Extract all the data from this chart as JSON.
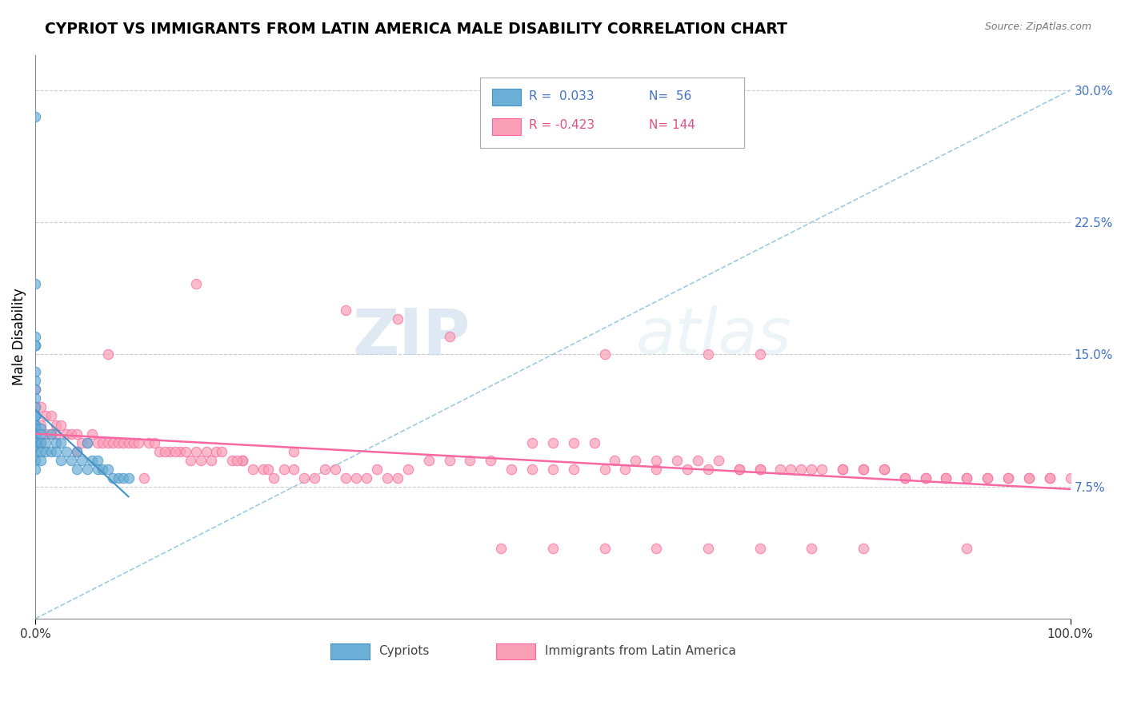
{
  "title": "CYPRIOT VS IMMIGRANTS FROM LATIN AMERICA MALE DISABILITY CORRELATION CHART",
  "source": "Source: ZipAtlas.com",
  "ylabel": "Male Disability",
  "xlim": [
    0.0,
    1.0
  ],
  "ylim": [
    0.0,
    0.32
  ],
  "cypriot_color": "#6baed6",
  "cypriot_edge": "#4292c6",
  "immigrant_color": "#fa9fb5",
  "immigrant_edge": "#f768a1",
  "trendline_cypriot": "#4292c6",
  "trendline_immigrant": "#f768a1",
  "diagonal_color": "#9ecae1",
  "watermark_zip": "ZIP",
  "watermark_atlas": "atlas",
  "cypriot_points_x": [
    0.0,
    0.0,
    0.0,
    0.0,
    0.0,
    0.0,
    0.0,
    0.0,
    0.0,
    0.0,
    0.0,
    0.0,
    0.0,
    0.0,
    0.0,
    0.0,
    0.0,
    0.0,
    0.0,
    0.0,
    0.0,
    0.0,
    0.0,
    0.0,
    0.0,
    0.0,
    0.0,
    0.005,
    0.005,
    0.005,
    0.005,
    0.005,
    0.01,
    0.01,
    0.015,
    0.015,
    0.02,
    0.02,
    0.025,
    0.025,
    0.03,
    0.035,
    0.04,
    0.04,
    0.045,
    0.05,
    0.05,
    0.055,
    0.06,
    0.06,
    0.065,
    0.07,
    0.075,
    0.08,
    0.085,
    0.09
  ],
  "cypriot_points_y": [
    0.285,
    0.19,
    0.16,
    0.155,
    0.155,
    0.14,
    0.135,
    0.13,
    0.125,
    0.12,
    0.115,
    0.115,
    0.115,
    0.115,
    0.11,
    0.11,
    0.108,
    0.105,
    0.105,
    0.103,
    0.1,
    0.1,
    0.1,
    0.098,
    0.095,
    0.09,
    0.085,
    0.108,
    0.105,
    0.1,
    0.095,
    0.09,
    0.1,
    0.095,
    0.105,
    0.095,
    0.1,
    0.095,
    0.1,
    0.09,
    0.095,
    0.09,
    0.095,
    0.085,
    0.09,
    0.1,
    0.085,
    0.09,
    0.09,
    0.085,
    0.085,
    0.085,
    0.08,
    0.08,
    0.08,
    0.08
  ],
  "immigrant_points_x": [
    0.0,
    0.0,
    0.0,
    0.005,
    0.005,
    0.005,
    0.01,
    0.01,
    0.015,
    0.015,
    0.02,
    0.02,
    0.025,
    0.03,
    0.035,
    0.04,
    0.04,
    0.045,
    0.05,
    0.055,
    0.06,
    0.065,
    0.07,
    0.07,
    0.075,
    0.08,
    0.085,
    0.09,
    0.095,
    0.1,
    0.11,
    0.12,
    0.13,
    0.14,
    0.15,
    0.155,
    0.16,
    0.165,
    0.17,
    0.175,
    0.19,
    0.2,
    0.21,
    0.22,
    0.225,
    0.23,
    0.25,
    0.26,
    0.27,
    0.28,
    0.3,
    0.31,
    0.32,
    0.33,
    0.34,
    0.35,
    0.36,
    0.38,
    0.4,
    0.42,
    0.44,
    0.46,
    0.48,
    0.5,
    0.52,
    0.55,
    0.57,
    0.6,
    0.63,
    0.65,
    0.68,
    0.7,
    0.73,
    0.75,
    0.78,
    0.8,
    0.82,
    0.84,
    0.86,
    0.88,
    0.9,
    0.92,
    0.94,
    0.96,
    0.98,
    1.0,
    0.55,
    0.65,
    0.7,
    0.48,
    0.5,
    0.52,
    0.54,
    0.56,
    0.58,
    0.6,
    0.62,
    0.64,
    0.66,
    0.68,
    0.7,
    0.72,
    0.74,
    0.76,
    0.78,
    0.8,
    0.82,
    0.84,
    0.86,
    0.88,
    0.9,
    0.92,
    0.94,
    0.96,
    0.98,
    0.5,
    0.6,
    0.7,
    0.8,
    0.9,
    0.55,
    0.65,
    0.75,
    0.45,
    0.35,
    0.4,
    0.3,
    0.25,
    0.2,
    0.105,
    0.115,
    0.125,
    0.135,
    0.145,
    0.155,
    0.18,
    0.195,
    0.24,
    0.29
  ],
  "immigrant_points_y": [
    0.13,
    0.12,
    0.11,
    0.12,
    0.11,
    0.1,
    0.115,
    0.105,
    0.115,
    0.105,
    0.11,
    0.105,
    0.11,
    0.105,
    0.105,
    0.105,
    0.095,
    0.1,
    0.1,
    0.105,
    0.1,
    0.1,
    0.15,
    0.1,
    0.1,
    0.1,
    0.1,
    0.1,
    0.1,
    0.1,
    0.1,
    0.095,
    0.095,
    0.095,
    0.09,
    0.19,
    0.09,
    0.095,
    0.09,
    0.095,
    0.09,
    0.09,
    0.085,
    0.085,
    0.085,
    0.08,
    0.085,
    0.08,
    0.08,
    0.085,
    0.08,
    0.08,
    0.08,
    0.085,
    0.08,
    0.08,
    0.085,
    0.09,
    0.09,
    0.09,
    0.09,
    0.085,
    0.085,
    0.085,
    0.085,
    0.085,
    0.085,
    0.085,
    0.085,
    0.085,
    0.085,
    0.085,
    0.085,
    0.085,
    0.085,
    0.085,
    0.085,
    0.08,
    0.08,
    0.08,
    0.08,
    0.08,
    0.08,
    0.08,
    0.08,
    0.08,
    0.15,
    0.15,
    0.15,
    0.1,
    0.1,
    0.1,
    0.1,
    0.09,
    0.09,
    0.09,
    0.09,
    0.09,
    0.09,
    0.085,
    0.085,
    0.085,
    0.085,
    0.085,
    0.085,
    0.085,
    0.085,
    0.08,
    0.08,
    0.08,
    0.08,
    0.08,
    0.08,
    0.08,
    0.08,
    0.04,
    0.04,
    0.04,
    0.04,
    0.04,
    0.04,
    0.04,
    0.04,
    0.04,
    0.17,
    0.16,
    0.175,
    0.095,
    0.09,
    0.08,
    0.1,
    0.095,
    0.095,
    0.095,
    0.095,
    0.095,
    0.09,
    0.085,
    0.085,
    0.08
  ]
}
